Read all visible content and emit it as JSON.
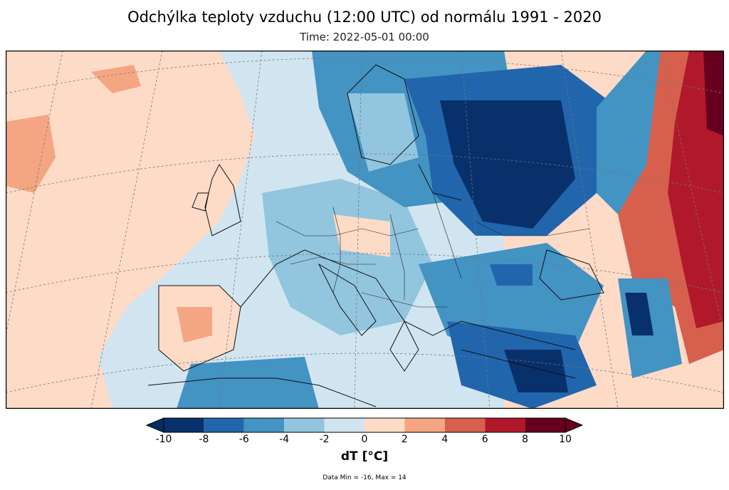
{
  "title": "Odchýlka teploty vzduchu (12:00 UTC) od normálu 1991 - 2020",
  "subtitle": "Time: 2022-05-01 00:00",
  "units": "dT [°C]",
  "stats": "Data Min = -16, Max = 14",
  "colorbar": {
    "ticks": [
      "-10",
      "-8",
      "-6",
      "-4",
      "-2",
      "0",
      "2",
      "4",
      "6",
      "8",
      "10"
    ],
    "colors": [
      "#08306b",
      "#2166ac",
      "#4393c3",
      "#92c5de",
      "#d1e5f0",
      "#fddbc7",
      "#f4a582",
      "#d6604d",
      "#b2182b",
      "#67001f"
    ],
    "under_color": "#053061",
    "over_color": "#67001f"
  },
  "map": {
    "region": "Europe",
    "ocean_base": "#fddbc7",
    "land_base": "#d1e5f0"
  }
}
